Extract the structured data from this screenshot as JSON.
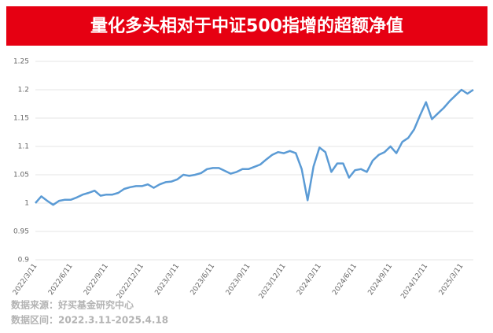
{
  "chart_data": {
    "type": "line",
    "title": "量化多头相对于中证500指增的超额净值",
    "source": "数据来源：好买基金研究中心",
    "date_range": "数据区间：2022.3.11-2025.4.18",
    "categories": [
      "2022/3/11",
      null,
      null,
      null,
      null,
      null,
      "2022/6/11",
      null,
      null,
      null,
      null,
      null,
      "2022/9/11",
      null,
      null,
      null,
      null,
      null,
      "2022/12/11",
      null,
      null,
      null,
      null,
      null,
      "2023/3/11",
      null,
      null,
      null,
      null,
      null,
      "2023/6/11",
      null,
      null,
      null,
      null,
      null,
      "2023/9/11",
      null,
      null,
      null,
      null,
      null,
      "2023/12/11",
      null,
      null,
      null,
      null,
      null,
      "2024/3/11",
      null,
      null,
      null,
      null,
      null,
      "2024/6/11",
      null,
      null,
      null,
      null,
      null,
      "2024/9/11",
      null,
      null,
      null,
      null,
      null,
      "2024/12/11",
      null,
      null,
      null,
      null,
      null,
      "2025/3/11",
      null,
      null
    ],
    "series": [
      {
        "color": "#5b9bd5",
        "values": [
          1.0,
          1.012,
          1.004,
          0.997,
          1.004,
          1.006,
          1.006,
          1.01,
          1.015,
          1.018,
          1.022,
          1.013,
          1.015,
          1.015,
          1.018,
          1.025,
          1.028,
          1.03,
          1.03,
          1.033,
          1.027,
          1.033,
          1.037,
          1.038,
          1.042,
          1.05,
          1.048,
          1.05,
          1.053,
          1.06,
          1.062,
          1.062,
          1.057,
          1.052,
          1.055,
          1.06,
          1.06,
          1.064,
          1.068,
          1.077,
          1.085,
          1.09,
          1.088,
          1.092,
          1.088,
          1.06,
          1.005,
          1.065,
          1.098,
          1.09,
          1.055,
          1.07,
          1.07,
          1.045,
          1.058,
          1.06,
          1.055,
          1.075,
          1.085,
          1.09,
          1.1,
          1.088,
          1.108,
          1.115,
          1.13,
          1.155,
          1.178,
          1.148,
          1.158,
          1.168,
          1.18,
          1.19,
          1.2,
          1.193,
          1.2
        ]
      }
    ],
    "ylim": [
      0.9,
      1.25
    ],
    "yticks": [
      0.9,
      0.95,
      1,
      1.05,
      1.1,
      1.15,
      1.2,
      1.25
    ],
    "grid": true
  }
}
